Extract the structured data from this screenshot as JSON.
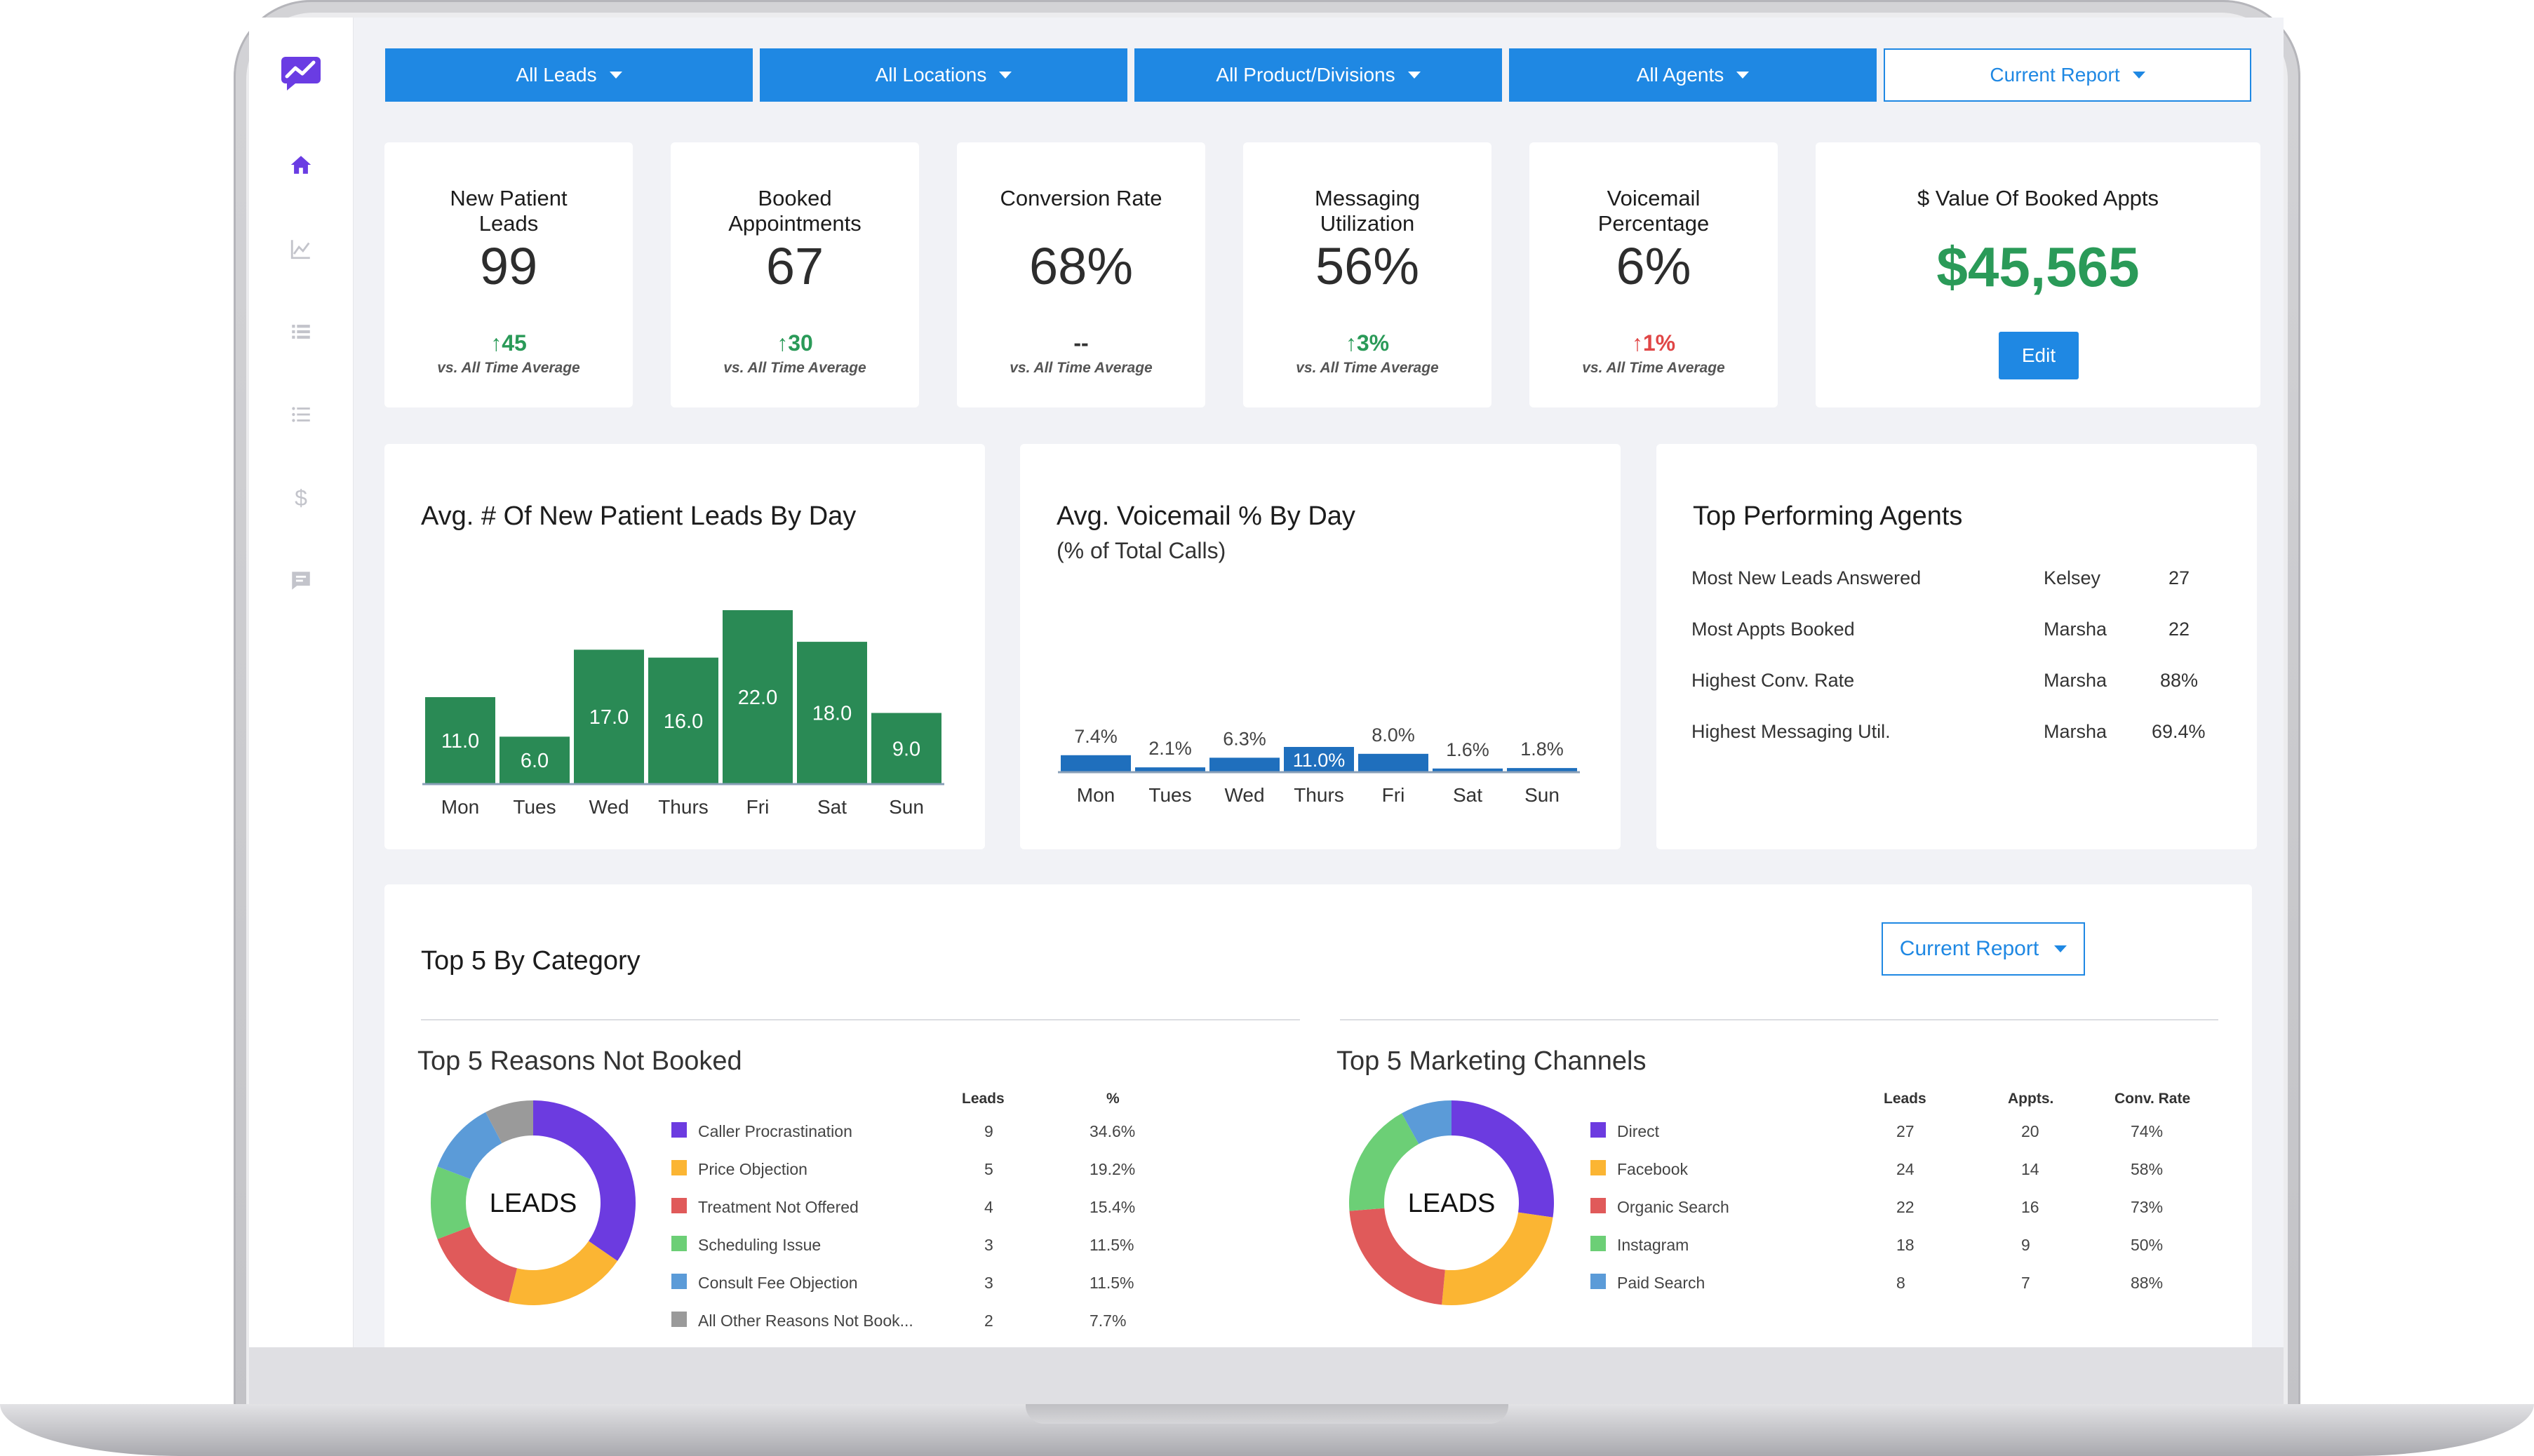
{
  "filters": [
    {
      "label": "All Leads"
    },
    {
      "label": "All Locations"
    },
    {
      "label": "All Product/Divisions"
    },
    {
      "label": "All Agents"
    },
    {
      "label": "Current Report"
    }
  ],
  "kpis": [
    {
      "title_line1": "New Patient",
      "title_line2": "Leads",
      "value": "99",
      "delta": "45",
      "direction": "up",
      "sub": "vs. All Time Average"
    },
    {
      "title_line1": "Booked",
      "title_line2": "Appointments",
      "value": "67",
      "delta": "30",
      "direction": "up",
      "sub": "vs. All Time Average"
    },
    {
      "title_line1": "Conversion Rate",
      "title_line2": "",
      "value": "68%",
      "delta": "--",
      "direction": "none",
      "sub": "vs. All Time Average"
    },
    {
      "title_line1": "Messaging",
      "title_line2": "Utilization",
      "value": "56%",
      "delta": "3%",
      "direction": "up",
      "sub": "vs. All Time Average"
    },
    {
      "title_line1": "Voicemail",
      "title_line2": "Percentage",
      "value": "6%",
      "delta": "1%",
      "direction": "up-bad",
      "sub": "vs. All Time Average"
    }
  ],
  "booked_value": {
    "title": "$ Value Of Booked Appts",
    "value": "$45,565",
    "edit_label": "Edit"
  },
  "chart_data": [
    {
      "type": "bar",
      "title": "Avg. # Of New Patient Leads By Day",
      "categories": [
        "Mon",
        "Tues",
        "Wed",
        "Thurs",
        "Fri",
        "Sat",
        "Sun"
      ],
      "values": [
        11.0,
        6.0,
        17.0,
        16.0,
        22.0,
        18.0,
        9.0
      ],
      "value_labels": [
        "11.0",
        "6.0",
        "17.0",
        "16.0",
        "22.0",
        "18.0",
        "9.0"
      ],
      "ylim": [
        0,
        22
      ],
      "color": "#2a8a55"
    },
    {
      "type": "bar",
      "title": "Avg. Voicemail % By Day",
      "subtitle": "(% of Total Calls)",
      "categories": [
        "Mon",
        "Tues",
        "Wed",
        "Thurs",
        "Fri",
        "Sat",
        "Sun"
      ],
      "values": [
        7.4,
        2.1,
        6.3,
        11.0,
        8.0,
        1.6,
        1.8
      ],
      "value_labels": [
        "7.4%",
        "2.1%",
        "6.3%",
        "11.0%",
        "8.0%",
        "1.6%",
        "1.8%"
      ],
      "ylim": [
        0,
        11
      ],
      "color": "#1f6fbd"
    },
    {
      "type": "pie",
      "title": "Top 5 Reasons Not Booked",
      "center_label": "LEADS",
      "categories": [
        "Caller Procrastination",
        "Price Objection",
        "Treatment Not Offered",
        "Scheduling Issue",
        "Consult Fee Objection",
        "All Other Reasons Not Book..."
      ],
      "values": [
        9,
        5,
        4,
        3,
        3,
        2
      ],
      "colors": [
        "#6c3be0",
        "#fbb533",
        "#e05a5a",
        "#6ccf76",
        "#5b9bd8",
        "#9a9a9a"
      ]
    },
    {
      "type": "pie",
      "title": "Top 5 Marketing Channels",
      "center_label": "LEADS",
      "categories": [
        "Direct",
        "Facebook",
        "Organic Search",
        "Instagram",
        "Paid Search"
      ],
      "values": [
        27,
        24,
        22,
        18,
        8
      ],
      "colors": [
        "#6c3be0",
        "#fbb533",
        "#e05a5a",
        "#6ccf76",
        "#5b9bd8"
      ]
    }
  ],
  "agents": {
    "title": "Top Performing Agents",
    "rows": [
      {
        "metric": "Most New Leads Answered",
        "agent": "Kelsey",
        "value": "27"
      },
      {
        "metric": "Most Appts Booked",
        "agent": "Marsha",
        "value": "22"
      },
      {
        "metric": "Highest Conv. Rate",
        "agent": "Marsha",
        "value": "88%"
      },
      {
        "metric": "Highest Messaging Util.",
        "agent": "Marsha",
        "value": "69.4%"
      }
    ]
  },
  "top5": {
    "title": "Top 5 By Category",
    "report_label": "Current Report",
    "reasons": {
      "headers": {
        "leads": "Leads",
        "pct": "%"
      },
      "rows": [
        {
          "label": "Caller Procrastination",
          "leads": "9",
          "pct": "34.6%"
        },
        {
          "label": "Price Objection",
          "leads": "5",
          "pct": "19.2%"
        },
        {
          "label": "Treatment Not Offered",
          "leads": "4",
          "pct": "15.4%"
        },
        {
          "label": "Scheduling Issue",
          "leads": "3",
          "pct": "11.5%"
        },
        {
          "label": "Consult Fee Objection",
          "leads": "3",
          "pct": "11.5%"
        },
        {
          "label": "All Other Reasons Not Book...",
          "leads": "2",
          "pct": "7.7%"
        }
      ]
    },
    "channels": {
      "headers": {
        "leads": "Leads",
        "appts": "Appts.",
        "conv": "Conv. Rate"
      },
      "rows": [
        {
          "label": "Direct",
          "leads": "27",
          "appts": "20",
          "conv": "74%"
        },
        {
          "label": "Facebook",
          "leads": "24",
          "appts": "14",
          "conv": "58%"
        },
        {
          "label": "Organic Search",
          "leads": "22",
          "appts": "16",
          "conv": "73%"
        },
        {
          "label": "Instagram",
          "leads": "18",
          "appts": "9",
          "conv": "50%"
        },
        {
          "label": "Paid Search",
          "leads": "8",
          "appts": "7",
          "conv": "88%"
        }
      ]
    }
  },
  "colors": {
    "accent": "#1f88e3",
    "positive": "#2a9a58",
    "negative": "#e04646"
  }
}
